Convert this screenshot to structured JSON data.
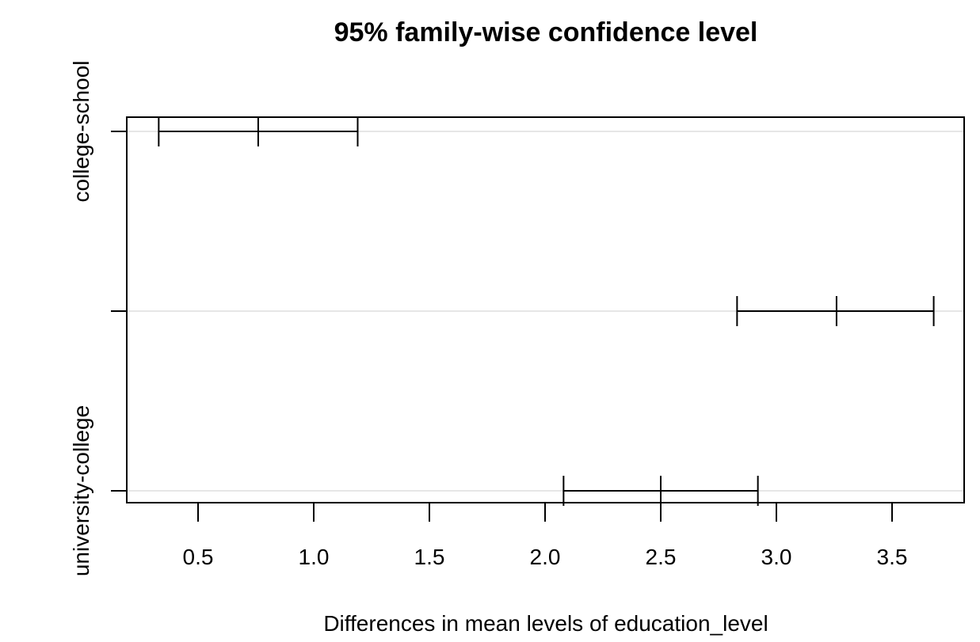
{
  "chart_data": {
    "type": "interval",
    "title": "95% family-wise confidence level",
    "xlabel": "Differences in mean levels of education_level",
    "ylabel": "",
    "xlim": [
      0.33,
      3.68
    ],
    "x_ticks": [
      0.5,
      1.0,
      1.5,
      2.0,
      2.5,
      3.0,
      3.5
    ],
    "x_tick_labels": [
      "0.5",
      "1.0",
      "1.5",
      "2.0",
      "2.5",
      "3.0",
      "3.5"
    ],
    "y_tick_labels": [
      "college-school",
      "",
      "university-college"
    ],
    "comparisons": [
      {
        "label": "college-school",
        "lwr": 0.33,
        "diff": 0.76,
        "upr": 1.19
      },
      {
        "label": "",
        "lwr": 2.83,
        "diff": 3.26,
        "upr": 3.68
      },
      {
        "label": "university-college",
        "lwr": 2.08,
        "diff": 2.5,
        "upr": 2.92
      }
    ],
    "grid": true,
    "colors": {
      "line": "#000000",
      "grid": "#dddddd"
    }
  }
}
